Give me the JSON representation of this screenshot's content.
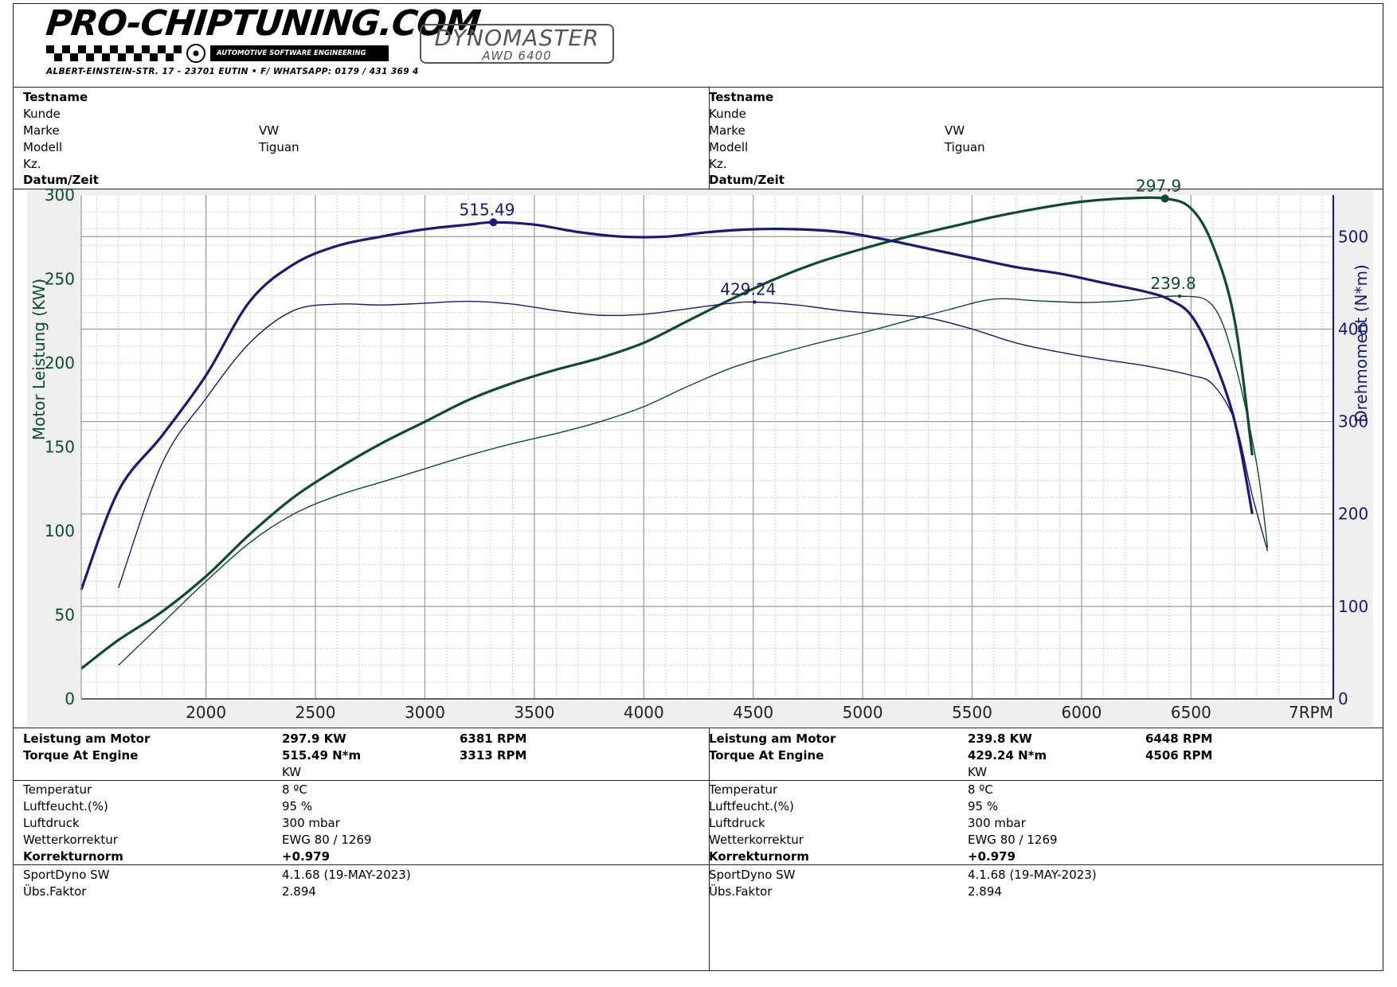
{
  "header": {
    "logo_title": "PRO-CHIPTUNING.COM",
    "logo_tagline": "AUTOMOTIVE SOFTWARE ENGINEERING",
    "address": "ALBERT-EINSTEIN-STR. 17 - 23701 EUTIN • F/ WHATSAPP: 0179 / 431 369 4",
    "dyno_name": "DYNOMASTER",
    "dyno_model": "AWD 6400"
  },
  "info": {
    "labels": {
      "testname": "Testname",
      "kunde": "Kunde",
      "marke": "Marke",
      "modell": "Modell",
      "kz": "Kz.",
      "datum": "Datum/Zeit"
    },
    "left": {
      "marke": "VW",
      "modell": "Tiguan"
    },
    "right": {
      "marke": "VW",
      "modell": "Tiguan"
    }
  },
  "results": {
    "labels": {
      "leistung": "Leistung am Motor",
      "torque": "Torque At Engine",
      "temperatur": "Temperatur",
      "luftfeucht": "Luftfeucht.(%)",
      "luftdruck": "Luftdruck",
      "wetter": "Wetterkorrektur",
      "korrektur": "Korrekturnorm",
      "software": "SportDyno SW",
      "faktor": "Übs.Faktor"
    },
    "left": {
      "power": "297.9 KW",
      "power_rpm": "6381 RPM",
      "torque": "515.49 N*m",
      "torque_rpm": "3313 RPM",
      "unit": "KW",
      "temperatur": "8 ºC",
      "luftfeucht": "95 %",
      "luftdruck": "300 mbar",
      "wetter": "EWG 80 / 1269",
      "korrektur": "+0.979",
      "software": "4.1.68 (19-MAY-2023)",
      "faktor": "2.894"
    },
    "right": {
      "power": "239.8 KW",
      "power_rpm": "6448 RPM",
      "torque": "429.24 N*m",
      "torque_rpm": "4506 RPM",
      "unit": "KW",
      "temperatur": "8 ºC",
      "luftfeucht": "95 %",
      "luftdruck": "300 mbar",
      "wetter": "EWG 80 / 1269",
      "korrektur": "+0.979",
      "software": "4.1.68 (19-MAY-2023)",
      "faktor": "2.894"
    }
  },
  "chart_data": {
    "type": "line",
    "xlabel": "RPM",
    "ylabel": "Motor Leistung (KW)",
    "y2label": "Drehmoment (N*m)",
    "xlim": [
      1430,
      7150
    ],
    "ylim": [
      0,
      300
    ],
    "y2lim": [
      0,
      545
    ],
    "x_ticks": [
      2000,
      2500,
      3000,
      3500,
      4000,
      4500,
      5000,
      5500,
      6000,
      6500
    ],
    "y_ticks": [
      0,
      50,
      100,
      150,
      200,
      250,
      300
    ],
    "y2_ticks": [
      0,
      100,
      200,
      300,
      400,
      500
    ],
    "y_ticks_text": [
      "0",
      "50",
      "100",
      "150",
      "200",
      "250",
      "300"
    ],
    "x_ticks_text": [
      "2000",
      "2500",
      "3000",
      "3500",
      "4000",
      "4500",
      "5000",
      "5500",
      "6000",
      "6500"
    ],
    "y2_ticks_text": [
      "0",
      "100",
      "200",
      "300",
      "400",
      "500"
    ],
    "x_end_label": "7RPM",
    "grid": true,
    "colors": {
      "power": "#0b4d2a",
      "torque": "#18197a",
      "axis_left": "#0b4d2a",
      "axis_right": "#18197a"
    },
    "series": [
      {
        "axis": "left",
        "style": "bold",
        "peak_label": "297.9",
        "peak": [
          6381,
          297.9
        ],
        "x": [
          1430,
          1600,
          1800,
          2000,
          2200,
          2400,
          2600,
          2800,
          3000,
          3200,
          3400,
          3600,
          3800,
          4000,
          4200,
          4400,
          4600,
          4800,
          5000,
          5200,
          5400,
          5600,
          5800,
          6000,
          6200,
          6381,
          6500,
          6600,
          6700,
          6780
        ],
        "values": [
          18,
          35,
          52,
          73,
          98,
          120,
          137,
          152,
          165,
          178,
          188,
          196,
          203,
          212,
          225,
          238,
          250,
          260,
          268,
          275,
          281,
          287,
          292,
          296,
          298,
          297.9,
          292,
          270,
          225,
          145
        ]
      },
      {
        "axis": "left",
        "style": "thin",
        "peak_label": "239.8",
        "peak": [
          6448,
          239.8
        ],
        "x": [
          1600,
          1800,
          2000,
          2200,
          2400,
          2600,
          2800,
          3000,
          3200,
          3400,
          3600,
          3800,
          4000,
          4200,
          4400,
          4600,
          4800,
          5000,
          5200,
          5400,
          5600,
          5800,
          6000,
          6200,
          6448,
          6600,
          6700,
          6800,
          6850
        ],
        "values": [
          20,
          45,
          70,
          93,
          110,
          121,
          129,
          137,
          145,
          152,
          158,
          165,
          174,
          186,
          197,
          205,
          212,
          218,
          225,
          232,
          238,
          237,
          236,
          237,
          239.8,
          234,
          200,
          140,
          90
        ]
      },
      {
        "axis": "right",
        "style": "bold",
        "peak_label": "515.49",
        "peak": [
          3313,
          515.49
        ],
        "x": [
          1430,
          1600,
          1800,
          2000,
          2200,
          2400,
          2600,
          2800,
          3000,
          3200,
          3313,
          3500,
          3700,
          3900,
          4100,
          4300,
          4500,
          4700,
          4900,
          5100,
          5300,
          5500,
          5700,
          5900,
          6100,
          6300,
          6400,
          6500,
          6600,
          6700,
          6780
        ],
        "values": [
          118,
          225,
          285,
          350,
          430,
          470,
          490,
          500,
          508,
          513,
          515.49,
          513,
          505,
          500,
          500,
          505,
          508,
          508,
          505,
          497,
          487,
          477,
          467,
          460,
          450,
          440,
          432,
          415,
          370,
          300,
          200
        ]
      },
      {
        "axis": "right",
        "style": "thin",
        "peak_label": "429.24",
        "peak": [
          4506,
          429.24
        ],
        "x": [
          1600,
          1800,
          2000,
          2200,
          2400,
          2600,
          2800,
          3000,
          3200,
          3400,
          3600,
          3800,
          4000,
          4200,
          4400,
          4506,
          4700,
          4900,
          5100,
          5300,
          5500,
          5700,
          5900,
          6100,
          6300,
          6500,
          6600,
          6700,
          6780,
          6850
        ],
        "values": [
          120,
          255,
          325,
          385,
          420,
          427,
          426,
          428,
          430,
          427,
          420,
          415,
          416,
          422,
          428,
          429.24,
          426,
          420,
          416,
          412,
          400,
          385,
          375,
          367,
          360,
          350,
          340,
          300,
          220,
          160
        ]
      }
    ]
  }
}
